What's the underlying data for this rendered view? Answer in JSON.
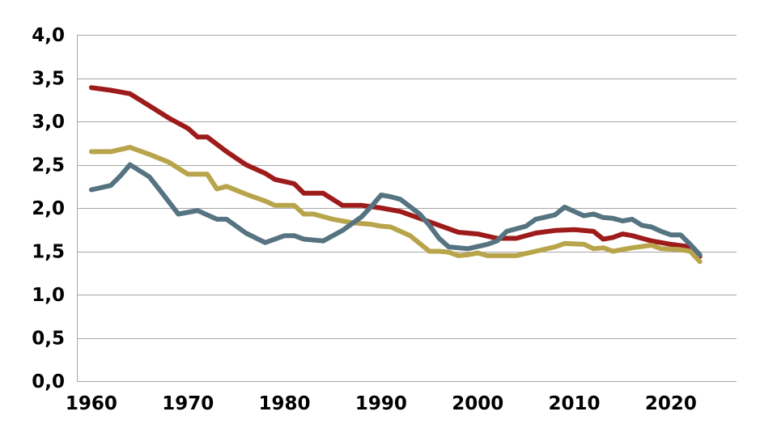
{
  "chart_data": {
    "type": "line",
    "title": "",
    "xlabel": "",
    "ylabel": "",
    "xlim": [
      1958.5,
      2026.8
    ],
    "ylim": [
      0,
      4
    ],
    "grid": true,
    "legend": "none",
    "x_ticks": [
      1960,
      1970,
      1980,
      1990,
      2000,
      2010,
      2020
    ],
    "x_tick_labels": [
      "1960",
      "1970",
      "1980",
      "1990",
      "2000",
      "2010",
      "2020"
    ],
    "y_ticks": [
      0,
      0.5,
      1,
      1.5,
      2,
      2.5,
      3,
      3.5,
      4
    ],
    "y_tick_labels": [
      "0,0",
      "0,5",
      "1,0",
      "1,5",
      "2,0",
      "2,5",
      "3,0",
      "3,5",
      "4,0"
    ],
    "series": [
      {
        "color": "#9e1b1b",
        "points": [
          [
            1960,
            3.39
          ],
          [
            1962,
            3.36
          ],
          [
            1964,
            3.32
          ],
          [
            1966,
            3.18
          ],
          [
            1968,
            3.04
          ],
          [
            1970,
            2.92
          ],
          [
            1971,
            2.82
          ],
          [
            1972,
            2.82
          ],
          [
            1974,
            2.65
          ],
          [
            1976,
            2.5
          ],
          [
            1978,
            2.4
          ],
          [
            1979,
            2.33
          ],
          [
            1981,
            2.28
          ],
          [
            1982,
            2.17
          ],
          [
            1984,
            2.17
          ],
          [
            1986,
            2.03
          ],
          [
            1988,
            2.03
          ],
          [
            1990,
            2.0
          ],
          [
            1992,
            1.96
          ],
          [
            1994,
            1.88
          ],
          [
            1996,
            1.8
          ],
          [
            1998,
            1.72
          ],
          [
            2000,
            1.7
          ],
          [
            2002,
            1.65
          ],
          [
            2004,
            1.65
          ],
          [
            2006,
            1.71
          ],
          [
            2008,
            1.74
          ],
          [
            2010,
            1.75
          ],
          [
            2012,
            1.73
          ],
          [
            2013,
            1.64
          ],
          [
            2014,
            1.66
          ],
          [
            2015,
            1.7
          ],
          [
            2016,
            1.68
          ],
          [
            2017,
            1.65
          ],
          [
            2018,
            1.62
          ],
          [
            2019,
            1.6
          ],
          [
            2020,
            1.58
          ],
          [
            2022,
            1.55
          ],
          [
            2023,
            1.44
          ]
        ]
      },
      {
        "color": "#b8a44a",
        "points": [
          [
            1960,
            2.65
          ],
          [
            1962,
            2.65
          ],
          [
            1964,
            2.7
          ],
          [
            1966,
            2.62
          ],
          [
            1968,
            2.53
          ],
          [
            1970,
            2.39
          ],
          [
            1972,
            2.39
          ],
          [
            1973,
            2.22
          ],
          [
            1974,
            2.25
          ],
          [
            1976,
            2.16
          ],
          [
            1978,
            2.08
          ],
          [
            1979,
            2.03
          ],
          [
            1981,
            2.03
          ],
          [
            1982,
            1.93
          ],
          [
            1983,
            1.93
          ],
          [
            1985,
            1.87
          ],
          [
            1987,
            1.83
          ],
          [
            1989,
            1.81
          ],
          [
            1990,
            1.79
          ],
          [
            1991,
            1.78
          ],
          [
            1993,
            1.68
          ],
          [
            1995,
            1.5
          ],
          [
            1996,
            1.5
          ],
          [
            1997,
            1.49
          ],
          [
            1998,
            1.45
          ],
          [
            1999,
            1.46
          ],
          [
            2000,
            1.48
          ],
          [
            2001,
            1.45
          ],
          [
            2002,
            1.45
          ],
          [
            2004,
            1.45
          ],
          [
            2006,
            1.5
          ],
          [
            2008,
            1.55
          ],
          [
            2009,
            1.59
          ],
          [
            2011,
            1.58
          ],
          [
            2012,
            1.53
          ],
          [
            2013,
            1.54
          ],
          [
            2014,
            1.5
          ],
          [
            2016,
            1.54
          ],
          [
            2018,
            1.57
          ],
          [
            2019,
            1.53
          ],
          [
            2021,
            1.52
          ],
          [
            2022,
            1.5
          ],
          [
            2023,
            1.38
          ]
        ]
      },
      {
        "color": "#557380",
        "points": [
          [
            1960,
            2.21
          ],
          [
            1962,
            2.26
          ],
          [
            1963,
            2.37
          ],
          [
            1964,
            2.5
          ],
          [
            1966,
            2.36
          ],
          [
            1967,
            2.22
          ],
          [
            1969,
            1.93
          ],
          [
            1971,
            1.97
          ],
          [
            1973,
            1.87
          ],
          [
            1974,
            1.87
          ],
          [
            1976,
            1.71
          ],
          [
            1978,
            1.6
          ],
          [
            1980,
            1.68
          ],
          [
            1981,
            1.68
          ],
          [
            1982,
            1.64
          ],
          [
            1984,
            1.62
          ],
          [
            1986,
            1.74
          ],
          [
            1988,
            1.9
          ],
          [
            1989,
            2.02
          ],
          [
            1990,
            2.15
          ],
          [
            1991,
            2.13
          ],
          [
            1992,
            2.1
          ],
          [
            1994,
            1.93
          ],
          [
            1995,
            1.8
          ],
          [
            1996,
            1.65
          ],
          [
            1997,
            1.55
          ],
          [
            1999,
            1.53
          ],
          [
            2001,
            1.58
          ],
          [
            2002,
            1.62
          ],
          [
            2003,
            1.73
          ],
          [
            2005,
            1.79
          ],
          [
            2006,
            1.87
          ],
          [
            2008,
            1.92
          ],
          [
            2009,
            2.01
          ],
          [
            2010,
            1.96
          ],
          [
            2011,
            1.91
          ],
          [
            2012,
            1.93
          ],
          [
            2013,
            1.89
          ],
          [
            2014,
            1.88
          ],
          [
            2015,
            1.85
          ],
          [
            2016,
            1.87
          ],
          [
            2017,
            1.8
          ],
          [
            2018,
            1.78
          ],
          [
            2019,
            1.73
          ],
          [
            2020,
            1.69
          ],
          [
            2021,
            1.69
          ],
          [
            2022,
            1.58
          ],
          [
            2023,
            1.46
          ]
        ]
      }
    ]
  }
}
